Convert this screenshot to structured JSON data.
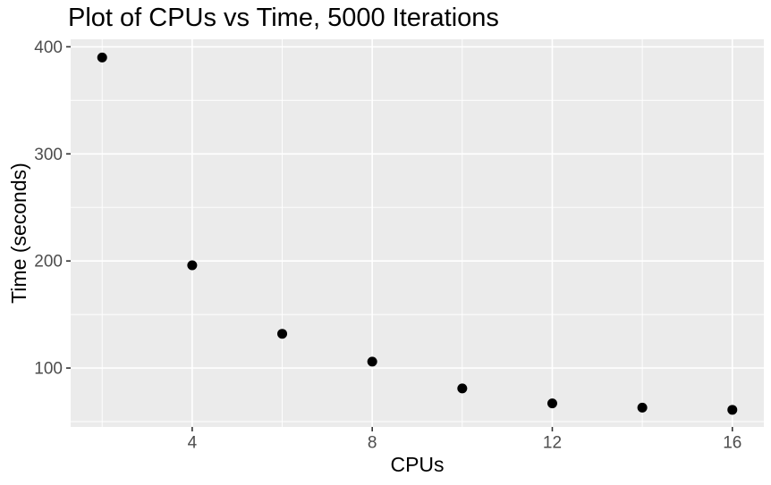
{
  "chart_data": {
    "type": "scatter",
    "title": "Plot of CPUs vs Time, 5000 Iterations",
    "xlabel": "CPUs",
    "ylabel": "Time (seconds)",
    "x": [
      2,
      4,
      6,
      8,
      10,
      12,
      14,
      16
    ],
    "y": [
      390,
      196,
      132,
      106,
      81,
      67,
      63,
      61
    ],
    "xticks": [
      4,
      8,
      12,
      16
    ],
    "yticks": [
      100,
      200,
      300,
      400
    ],
    "xlim": [
      1.3,
      16.7
    ],
    "ylim": [
      45,
      407
    ],
    "grid": "major-and-minor",
    "legend_position": "none",
    "point_color": "#000000",
    "panel_background": "#EBEBEB",
    "grid_color": "#FFFFFF",
    "tick_mark_color": "#333333",
    "tick_label_color": "#4D4D4D",
    "title_color": "#000000",
    "axis_title_color": "#000000"
  }
}
